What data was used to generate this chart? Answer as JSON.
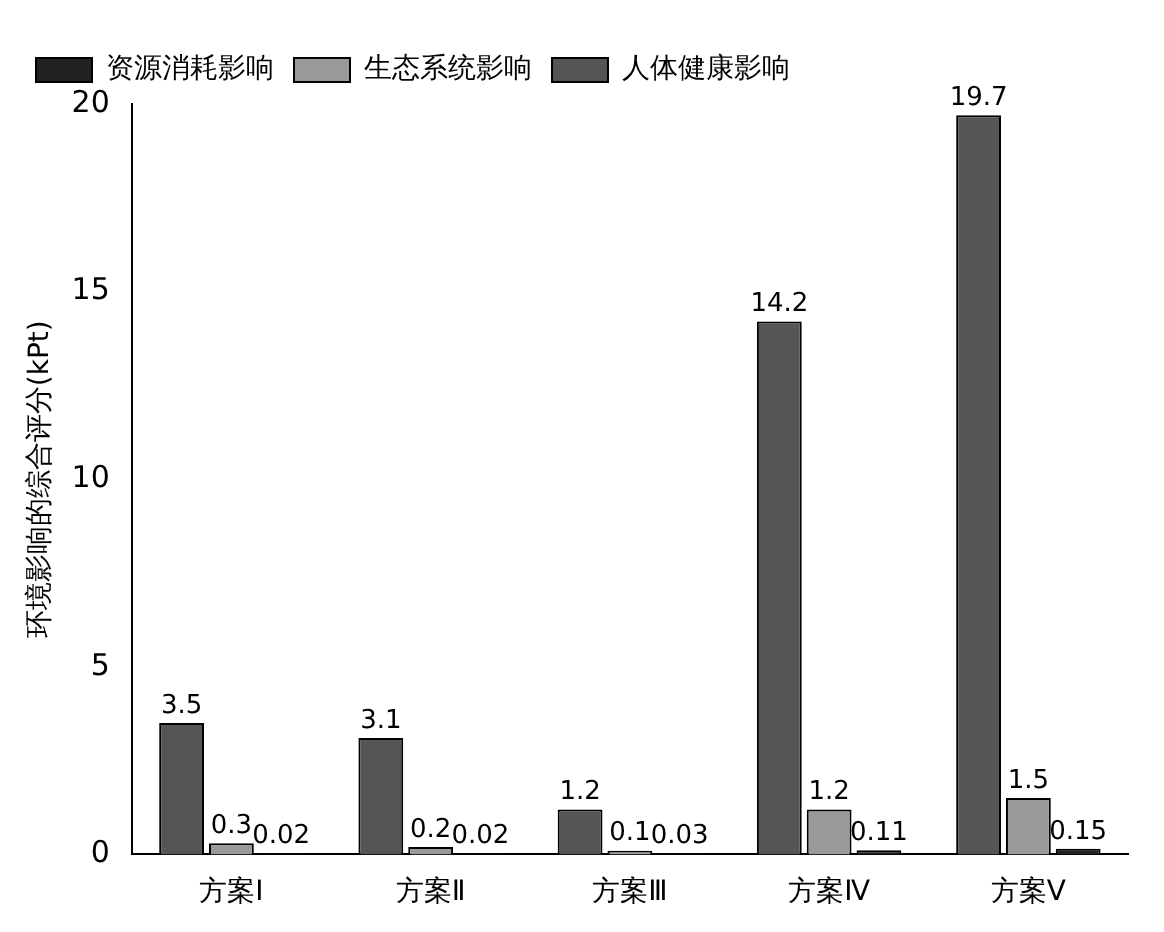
{
  "chart_data": {
    "type": "bar",
    "ylabel": "环境影响的综合评分(kPt)",
    "categories": [
      "方案Ⅰ",
      "方案Ⅱ",
      "方案Ⅲ",
      "方案Ⅳ",
      "方案Ⅴ"
    ],
    "series": [
      {
        "name": "人体健康影响",
        "color": "#555555",
        "values": [
          3.5,
          3.1,
          1.2,
          14.2,
          19.7
        ]
      },
      {
        "name": "生态系统影响",
        "color": "#999999",
        "values": [
          0.3,
          0.2,
          0.1,
          1.2,
          1.5
        ]
      },
      {
        "name": "资源消耗影响",
        "color": "#222222",
        "values": [
          0.02,
          0.02,
          0.03,
          0.11,
          0.15
        ]
      }
    ],
    "ylim": [
      0,
      20
    ],
    "yticks": [
      0,
      5,
      10,
      15,
      20
    ],
    "grid": false,
    "legend": "top left",
    "data_labels": true
  }
}
